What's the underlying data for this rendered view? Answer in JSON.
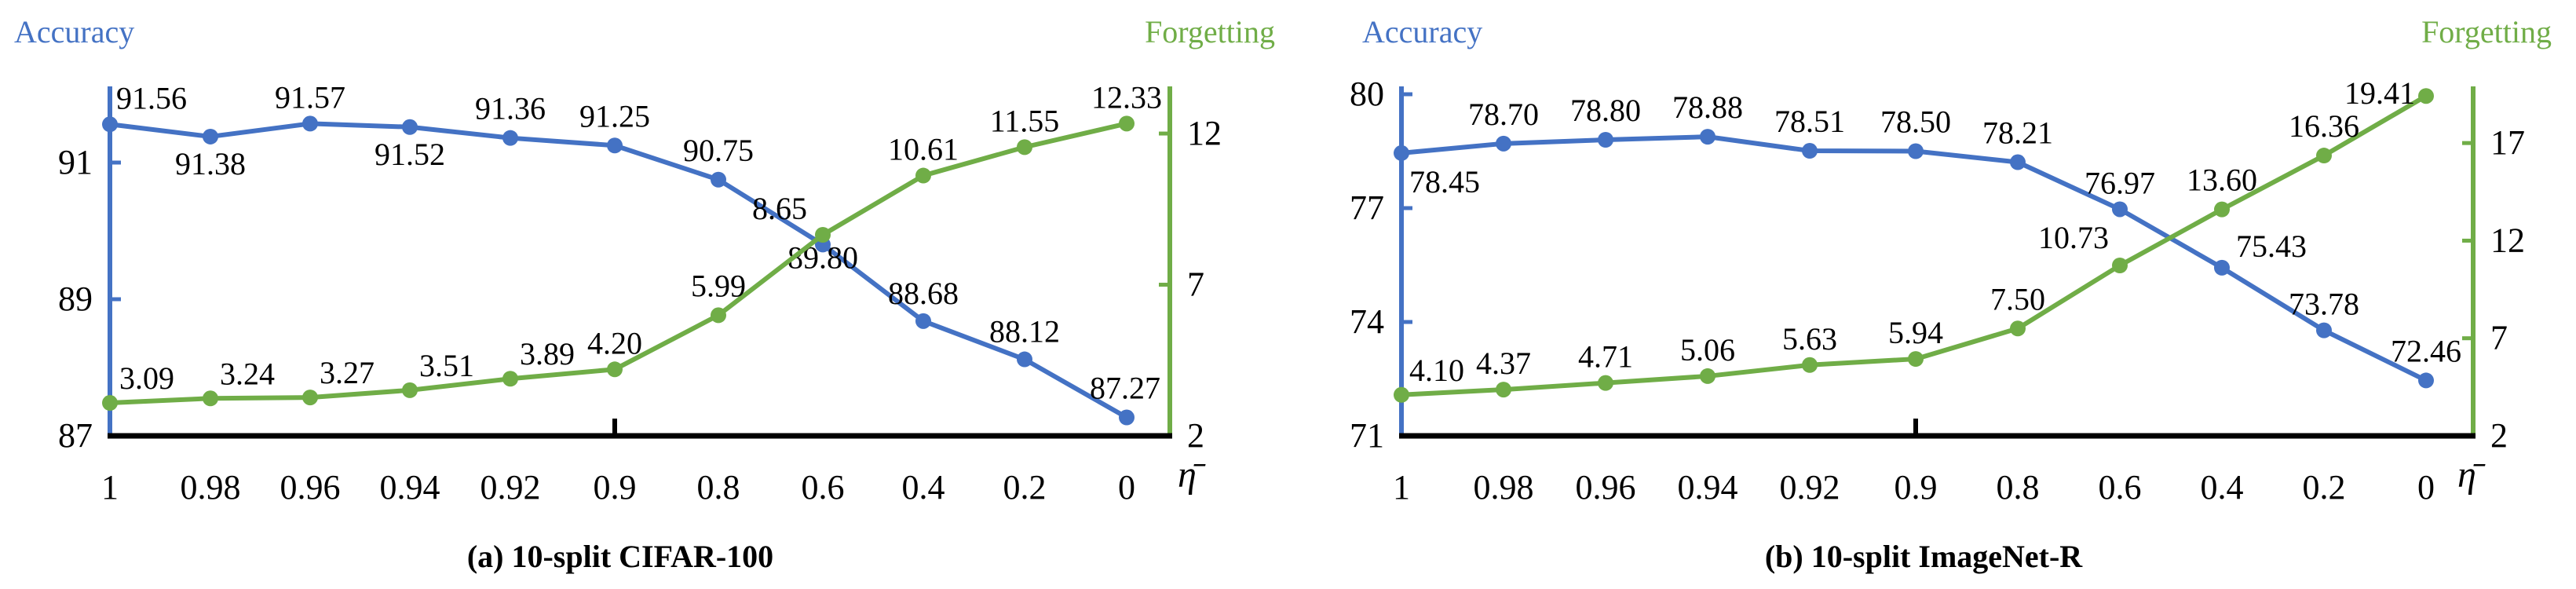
{
  "colors": {
    "accuracy": "#4472C4",
    "forgetting": "#70AD47",
    "axis": "#000000"
  },
  "chart_data": [
    {
      "type": "line",
      "caption": "(a) 10-split CIFAR-100",
      "xlabel": "η̄",
      "categories": [
        "1",
        "0.98",
        "0.96",
        "0.94",
        "0.92",
        "0.9",
        "0.8",
        "0.6",
        "0.4",
        "0.2",
        "0"
      ],
      "series": [
        {
          "name": "Accuracy",
          "axis": "left",
          "color": "#4472C4",
          "values": [
            91.56,
            91.38,
            91.57,
            91.52,
            91.36,
            91.25,
            90.75,
            89.8,
            88.68,
            88.12,
            87.27
          ],
          "labels": [
            "91.56",
            "91.38",
            "91.57",
            "91.52",
            "91.36",
            "91.25",
            "90.75",
            "89.80",
            "88.68",
            "88.12",
            "87.27"
          ]
        },
        {
          "name": "Forgetting",
          "axis": "right",
          "color": "#70AD47",
          "values": [
            3.09,
            3.24,
            3.27,
            3.51,
            3.89,
            4.2,
            5.99,
            8.65,
            10.61,
            11.55,
            12.33
          ],
          "labels": [
            "3.09",
            "3.24",
            "3.27",
            "3.51",
            "3.89",
            "4.20",
            "5.99",
            "8.65",
            "10.61",
            "11.55",
            "12.33"
          ]
        }
      ],
      "left_axis": {
        "ylim": [
          87,
          92
        ],
        "ticks": [
          87,
          89,
          91
        ],
        "tick_labels": [
          "87",
          "89",
          "91"
        ]
      },
      "right_axis": {
        "ylim": [
          2,
          13.3
        ],
        "ticks": [
          2,
          7,
          12
        ],
        "tick_labels": [
          "2",
          "7",
          "12"
        ]
      },
      "grid": false
    },
    {
      "type": "line",
      "caption": "(b) 10-split ImageNet-R",
      "xlabel": "η̄",
      "categories": [
        "1",
        "0.98",
        "0.96",
        "0.94",
        "0.92",
        "0.9",
        "0.8",
        "0.6",
        "0.4",
        "0.2",
        "0"
      ],
      "series": [
        {
          "name": "Accuracy",
          "axis": "left",
          "color": "#4472C4",
          "values": [
            78.45,
            78.7,
            78.8,
            78.88,
            78.51,
            78.5,
            78.21,
            76.97,
            75.43,
            73.78,
            72.46
          ],
          "labels": [
            "78.45",
            "78.70",
            "78.80",
            "78.88",
            "78.51",
            "78.50",
            "78.21",
            "76.97",
            "75.43",
            "73.78",
            "72.46"
          ]
        },
        {
          "name": "Forgetting",
          "axis": "right",
          "color": "#70AD47",
          "values": [
            4.1,
            4.37,
            4.71,
            5.06,
            5.63,
            5.94,
            7.5,
            10.73,
            13.6,
            16.36,
            19.41
          ],
          "labels": [
            "4.10",
            "4.37",
            "4.71",
            "5.06",
            "5.63",
            "5.94",
            "7.50",
            "10.73",
            "13.60",
            "16.36",
            "19.41"
          ]
        }
      ],
      "left_axis": {
        "ylim": [
          71,
          80
        ],
        "ticks": [
          71,
          74,
          77,
          80
        ],
        "tick_labels": [
          "71",
          "74",
          "77",
          "80"
        ]
      },
      "right_axis": {
        "ylim": [
          2,
          19.5
        ],
        "ticks": [
          2,
          7,
          12,
          17
        ],
        "tick_labels": [
          "2",
          "7",
          "12",
          "17"
        ]
      },
      "grid": false
    }
  ]
}
